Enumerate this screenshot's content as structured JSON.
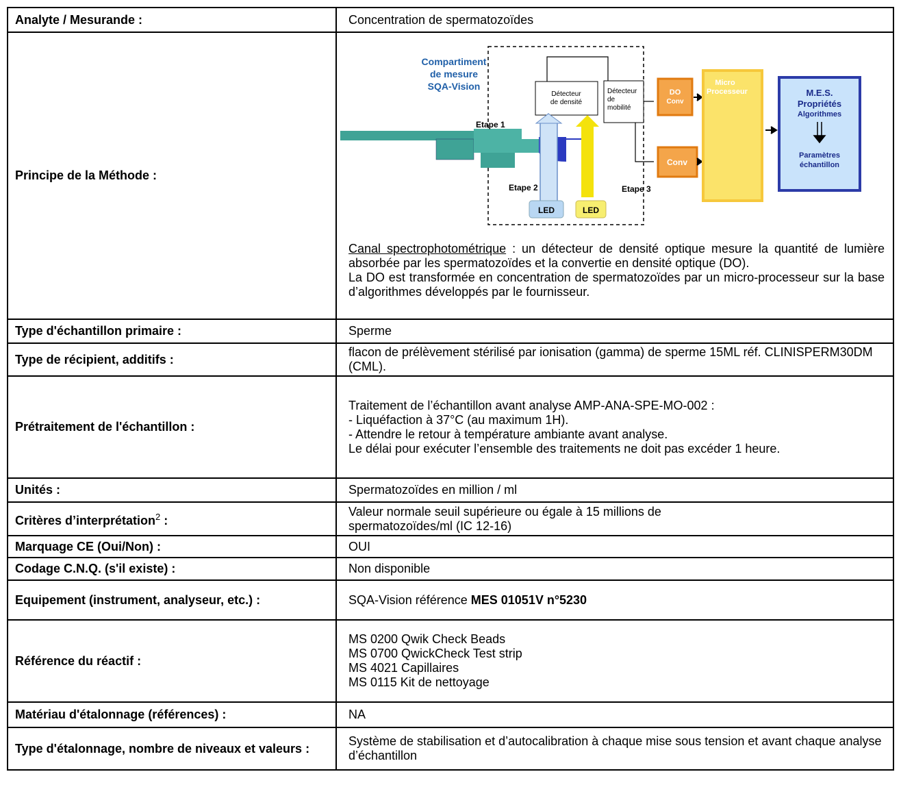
{
  "table": {
    "rows": [
      {
        "label": "Analyte / Mesurande :",
        "value": "Concentration de spermatozoïdes"
      },
      {
        "label": "Principe de la Méthode :",
        "diagram": {
          "compartment": [
            "Compartiment",
            "de mesure",
            "SQA-Vision"
          ],
          "step1": "Etape 1",
          "step2": "Etape 2",
          "step3": "Etape 3",
          "density_detector": [
            "Détecteur",
            "de densité"
          ],
          "mobility_detector": [
            "Détecteur",
            "de",
            "mobilité"
          ],
          "do_conv": [
            "DO",
            "Conv"
          ],
          "conv": "Conv",
          "microprocessor": [
            "Micro",
            "Processeur"
          ],
          "mes": [
            "M.E.S.",
            "Propriétés",
            "Algorithmes"
          ],
          "params": [
            "Paramètres",
            "échantillon"
          ],
          "led": [
            "LED",
            "LED"
          ]
        },
        "text": {
          "underlined": "Canal spectrophotométrique",
          "rest": " : un détecteur de densité optique mesure la quantité de lumière absorbée par les spermatozoïdes et la convertie en densité optique (DO).",
          "second": "La DO est transformée en concentration de spermatozoïdes par un micro-processeur sur la base d’algorithmes développés par le fournisseur."
        }
      },
      {
        "label": "Type d'échantillon primaire :",
        "value": "Sperme"
      },
      {
        "label": "Type de récipient, additifs :",
        "value": "flacon de prélèvement stérilisé par ionisation (gamma) de sperme 15ML réf. CLINISPERM30DM (CML)."
      },
      {
        "label": "Prétraitement de l'échantillon :",
        "lines": [
          "Traitement de l’échantillon avant analyse AMP-ANA-SPE-MO-002 :",
          "- Liquéfaction à 37°C (au maximum 1H).",
          "- Attendre le retour à température ambiante avant analyse.",
          "Le délai pour exécuter l’ensemble des traitements ne doit pas excéder 1 heure."
        ]
      },
      {
        "label": "Unités :",
        "value": "Spermatozoïdes en million / ml"
      },
      {
        "label": "Critères d’interprétation",
        "label_sup": "2",
        "label_tail": " :",
        "lines": [
          "Valeur normale seuil supérieure ou égale à 15 millions de",
          "spermatozoïdes/ml (IC 12-16)"
        ]
      },
      {
        "label": "Marquage CE (Oui/Non) :",
        "value": "OUI"
      },
      {
        "label": "Codage C.N.Q.  (s'il existe) :",
        "value": "Non disponible"
      },
      {
        "label": "Equipement (instrument, analyseur, etc.) :",
        "value_plain": "SQA-Vision référence ",
        "value_bold": "MES 01051V n°5230"
      },
      {
        "label": "Référence du réactif :",
        "lines": [
          "MS 0200 Qwik Check Beads",
          "MS 0700 QwickCheck Test strip",
          "MS 4021 Capillaires",
          "MS 0115 Kit de nettoyage"
        ]
      },
      {
        "label": "Matériau d'étalonnage (références) :",
        "value": "NA"
      },
      {
        "label": "Type d'étalonnage, nombre de niveaux et valeurs :",
        "value": "Système de stabilisation et d’autocalibration à chaque mise sous tension et avant chaque analyse d’échantillon"
      }
    ]
  }
}
